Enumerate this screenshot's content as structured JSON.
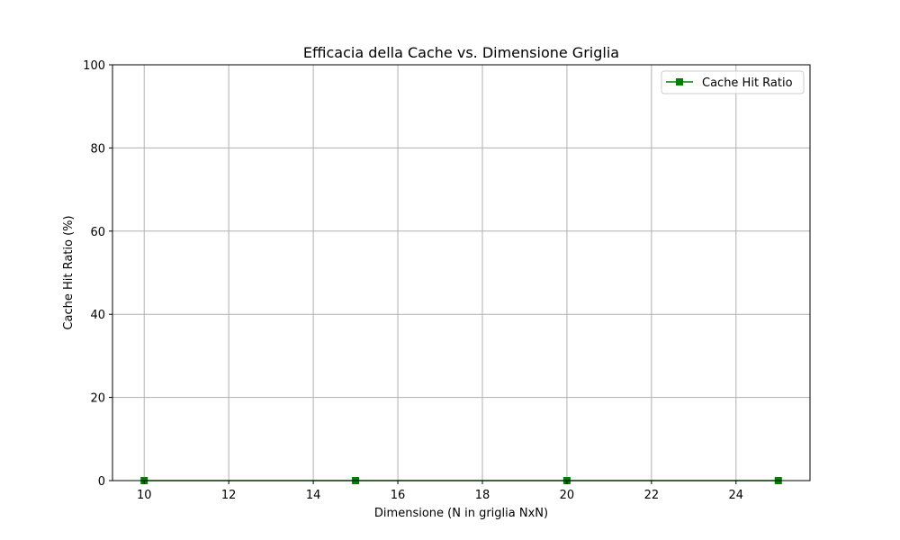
{
  "chart_data": {
    "type": "line",
    "title": "Efficacia della Cache vs. Dimensione Griglia",
    "xlabel": "Dimensione (N in griglia NxN)",
    "ylabel": "Cache Hit Ratio (%)",
    "xlim": [
      9.25,
      25.75
    ],
    "ylim": [
      0,
      100
    ],
    "xticks": [
      10,
      12,
      14,
      16,
      18,
      20,
      22,
      24
    ],
    "yticks": [
      0,
      20,
      40,
      60,
      80,
      100
    ],
    "grid": true,
    "legend_position": "top-right",
    "series": [
      {
        "name": "Cache Hit Ratio",
        "color": "#008000",
        "marker": "square",
        "x": [
          10,
          15,
          20,
          25
        ],
        "y": [
          0,
          0,
          0,
          0
        ]
      }
    ]
  }
}
